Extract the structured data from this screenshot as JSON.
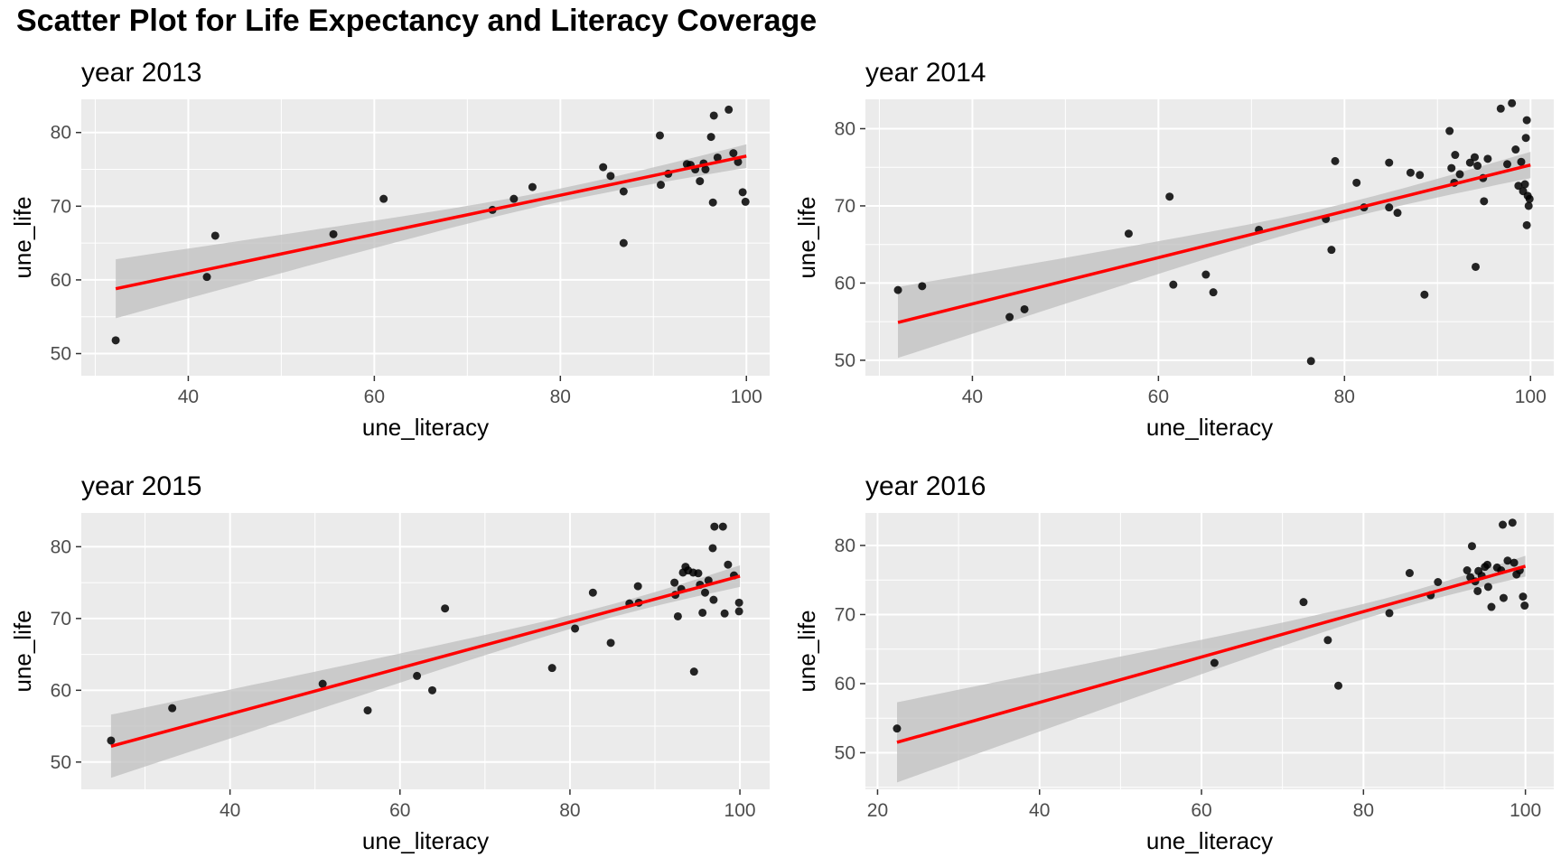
{
  "figure": {
    "title": "Scatter Plot for Life Expectancy and Literacy Coverage"
  },
  "colors": {
    "panel_background": "#ebebeb",
    "grid": "#ffffff",
    "points": "#000000",
    "fit_line": "#ff0000",
    "confidence_band": "#bfbfbf",
    "axis_text": "#4d4d4d",
    "text": "#000000"
  },
  "chart_data": [
    {
      "type": "scatter",
      "title": "year 2013",
      "xlabel": "une_literacy",
      "ylabel": "une_life",
      "xlim": [
        28.5,
        102.5
      ],
      "ylim": [
        47,
        84.5
      ],
      "xticks": [
        40,
        60,
        80,
        100
      ],
      "yticks": [
        50,
        60,
        70,
        80
      ],
      "grid": true,
      "fit": {
        "x": [
          32.2,
          100
        ],
        "y": [
          58.8,
          76.8
        ],
        "band_halfwidth_ends": [
          4.0,
          1.6
        ],
        "band_halfwidth_center": 0.9,
        "band_center_x": 80
      },
      "points": [
        {
          "x": 32.2,
          "y": 51.8
        },
        {
          "x": 42.0,
          "y": 60.4
        },
        {
          "x": 42.9,
          "y": 66.0
        },
        {
          "x": 55.6,
          "y": 66.2
        },
        {
          "x": 61.0,
          "y": 71.0
        },
        {
          "x": 72.7,
          "y": 69.5
        },
        {
          "x": 75.0,
          "y": 71.0
        },
        {
          "x": 77.0,
          "y": 72.6
        },
        {
          "x": 84.6,
          "y": 75.3
        },
        {
          "x": 85.4,
          "y": 74.1
        },
        {
          "x": 86.8,
          "y": 72.0
        },
        {
          "x": 86.8,
          "y": 65.0
        },
        {
          "x": 90.7,
          "y": 79.6
        },
        {
          "x": 90.8,
          "y": 72.9
        },
        {
          "x": 91.6,
          "y": 74.4
        },
        {
          "x": 93.6,
          "y": 75.7
        },
        {
          "x": 94.0,
          "y": 75.6
        },
        {
          "x": 94.5,
          "y": 75.0
        },
        {
          "x": 95.0,
          "y": 73.4
        },
        {
          "x": 95.4,
          "y": 75.8
        },
        {
          "x": 95.6,
          "y": 75.0
        },
        {
          "x": 96.2,
          "y": 79.4
        },
        {
          "x": 96.4,
          "y": 70.5
        },
        {
          "x": 96.5,
          "y": 82.3
        },
        {
          "x": 96.9,
          "y": 76.6
        },
        {
          "x": 98.1,
          "y": 83.1
        },
        {
          "x": 98.6,
          "y": 77.2
        },
        {
          "x": 99.1,
          "y": 76.0
        },
        {
          "x": 99.6,
          "y": 71.9
        },
        {
          "x": 99.9,
          "y": 70.6
        }
      ]
    },
    {
      "type": "scatter",
      "title": "year 2014",
      "xlabel": "une_literacy",
      "ylabel": "une_life",
      "xlim": [
        28.5,
        102.5
      ],
      "ylim": [
        48,
        83.8
      ],
      "xticks": [
        40,
        60,
        80,
        100
      ],
      "yticks": [
        50,
        60,
        70,
        80
      ],
      "grid": true,
      "fit": {
        "x": [
          32,
          100
        ],
        "y": [
          54.9,
          75.3
        ],
        "band_halfwidth_ends": [
          4.6,
          1.7
        ],
        "band_halfwidth_center": 1.0,
        "band_center_x": 80
      },
      "points": [
        {
          "x": 32.0,
          "y": 59.1
        },
        {
          "x": 34.6,
          "y": 59.6
        },
        {
          "x": 44.0,
          "y": 55.6
        },
        {
          "x": 45.6,
          "y": 56.6
        },
        {
          "x": 56.8,
          "y": 66.4
        },
        {
          "x": 61.2,
          "y": 71.2
        },
        {
          "x": 61.6,
          "y": 59.8
        },
        {
          "x": 65.1,
          "y": 61.1
        },
        {
          "x": 65.9,
          "y": 58.8
        },
        {
          "x": 70.8,
          "y": 66.9
        },
        {
          "x": 76.4,
          "y": 49.9
        },
        {
          "x": 78.0,
          "y": 68.3
        },
        {
          "x": 78.6,
          "y": 64.3
        },
        {
          "x": 79.0,
          "y": 75.8
        },
        {
          "x": 81.3,
          "y": 73.0
        },
        {
          "x": 82.1,
          "y": 69.8
        },
        {
          "x": 84.8,
          "y": 75.6
        },
        {
          "x": 84.8,
          "y": 69.8
        },
        {
          "x": 85.7,
          "y": 69.1
        },
        {
          "x": 87.1,
          "y": 74.3
        },
        {
          "x": 88.1,
          "y": 74.0
        },
        {
          "x": 88.6,
          "y": 58.5
        },
        {
          "x": 91.3,
          "y": 79.7
        },
        {
          "x": 91.5,
          "y": 74.9
        },
        {
          "x": 91.8,
          "y": 73.0
        },
        {
          "x": 91.9,
          "y": 76.6
        },
        {
          "x": 92.4,
          "y": 74.1
        },
        {
          "x": 93.5,
          "y": 75.6
        },
        {
          "x": 94.0,
          "y": 76.3
        },
        {
          "x": 94.1,
          "y": 62.1
        },
        {
          "x": 94.3,
          "y": 75.2
        },
        {
          "x": 94.9,
          "y": 73.6
        },
        {
          "x": 95.0,
          "y": 70.6
        },
        {
          "x": 95.4,
          "y": 76.1
        },
        {
          "x": 96.8,
          "y": 82.6
        },
        {
          "x": 97.5,
          "y": 75.4
        },
        {
          "x": 98.0,
          "y": 83.3
        },
        {
          "x": 98.4,
          "y": 77.3
        },
        {
          "x": 98.7,
          "y": 72.6
        },
        {
          "x": 99.0,
          "y": 75.7
        },
        {
          "x": 99.2,
          "y": 71.9
        },
        {
          "x": 99.4,
          "y": 72.8
        },
        {
          "x": 99.5,
          "y": 78.8
        },
        {
          "x": 99.6,
          "y": 81.1
        },
        {
          "x": 99.6,
          "y": 67.5
        },
        {
          "x": 99.7,
          "y": 71.3
        },
        {
          "x": 99.8,
          "y": 70.0
        },
        {
          "x": 99.9,
          "y": 70.9
        }
      ]
    },
    {
      "type": "scatter",
      "title": "year 2015",
      "xlabel": "une_literacy",
      "ylabel": "une_life",
      "xlim": [
        22.5,
        103.5
      ],
      "ylim": [
        46.2,
        84.7
      ],
      "xticks": [
        40,
        60,
        80,
        100
      ],
      "yticks": [
        50,
        60,
        70,
        80
      ],
      "grid": true,
      "fit": {
        "x": [
          26,
          100
        ],
        "y": [
          52.2,
          75.9
        ],
        "band_halfwidth_ends": [
          4.4,
          1.5
        ],
        "band_halfwidth_center": 0.9,
        "band_center_x": 85
      },
      "points": [
        {
          "x": 26.0,
          "y": 53.0
        },
        {
          "x": 33.2,
          "y": 57.5
        },
        {
          "x": 50.9,
          "y": 60.9
        },
        {
          "x": 56.2,
          "y": 57.2
        },
        {
          "x": 62.0,
          "y": 62.0
        },
        {
          "x": 63.8,
          "y": 60.0
        },
        {
          "x": 65.3,
          "y": 71.4
        },
        {
          "x": 77.9,
          "y": 63.1
        },
        {
          "x": 80.6,
          "y": 68.6
        },
        {
          "x": 82.7,
          "y": 73.6
        },
        {
          "x": 84.8,
          "y": 66.6
        },
        {
          "x": 87.0,
          "y": 72.1
        },
        {
          "x": 88.0,
          "y": 74.5
        },
        {
          "x": 88.1,
          "y": 72.2
        },
        {
          "x": 92.3,
          "y": 75.0
        },
        {
          "x": 92.4,
          "y": 73.3
        },
        {
          "x": 92.7,
          "y": 70.3
        },
        {
          "x": 93.1,
          "y": 74.1
        },
        {
          "x": 93.3,
          "y": 76.4
        },
        {
          "x": 93.6,
          "y": 77.2
        },
        {
          "x": 93.9,
          "y": 76.7
        },
        {
          "x": 94.5,
          "y": 76.4
        },
        {
          "x": 94.6,
          "y": 62.6
        },
        {
          "x": 95.1,
          "y": 76.3
        },
        {
          "x": 95.3,
          "y": 74.7
        },
        {
          "x": 95.6,
          "y": 70.8
        },
        {
          "x": 95.9,
          "y": 73.6
        },
        {
          "x": 96.3,
          "y": 75.3
        },
        {
          "x": 96.8,
          "y": 79.8
        },
        {
          "x": 96.9,
          "y": 72.6
        },
        {
          "x": 97.0,
          "y": 82.8
        },
        {
          "x": 98.0,
          "y": 82.8
        },
        {
          "x": 98.2,
          "y": 70.7
        },
        {
          "x": 98.6,
          "y": 77.5
        },
        {
          "x": 99.3,
          "y": 76.0
        },
        {
          "x": 99.9,
          "y": 72.2
        },
        {
          "x": 99.9,
          "y": 71.0
        }
      ]
    },
    {
      "type": "scatter",
      "title": "year 2016",
      "xlabel": "une_literacy",
      "ylabel": "une_life",
      "xlim": [
        18.5,
        103.5
      ],
      "ylim": [
        44.7,
        84.7
      ],
      "xticks": [
        20,
        40,
        60,
        80,
        100
      ],
      "yticks": [
        50,
        60,
        70,
        80
      ],
      "grid": true,
      "fit": {
        "x": [
          22.4,
          100
        ],
        "y": [
          51.5,
          77.0
        ],
        "band_halfwidth_ends": [
          5.8,
          1.5
        ],
        "band_halfwidth_center": 1.0,
        "band_center_x": 85
      },
      "points": [
        {
          "x": 22.4,
          "y": 53.5
        },
        {
          "x": 61.6,
          "y": 63.0
        },
        {
          "x": 72.6,
          "y": 71.8
        },
        {
          "x": 75.6,
          "y": 66.3
        },
        {
          "x": 76.9,
          "y": 59.7
        },
        {
          "x": 83.2,
          "y": 70.2
        },
        {
          "x": 85.7,
          "y": 76.0
        },
        {
          "x": 88.3,
          "y": 72.8
        },
        {
          "x": 89.2,
          "y": 74.7
        },
        {
          "x": 92.8,
          "y": 76.4
        },
        {
          "x": 93.2,
          "y": 75.4
        },
        {
          "x": 93.4,
          "y": 79.9
        },
        {
          "x": 93.8,
          "y": 74.8
        },
        {
          "x": 94.1,
          "y": 73.4
        },
        {
          "x": 94.2,
          "y": 76.3
        },
        {
          "x": 94.6,
          "y": 75.6
        },
        {
          "x": 95.0,
          "y": 76.9
        },
        {
          "x": 95.3,
          "y": 77.2
        },
        {
          "x": 95.4,
          "y": 74.0
        },
        {
          "x": 95.8,
          "y": 71.1
        },
        {
          "x": 96.5,
          "y": 76.8
        },
        {
          "x": 97.0,
          "y": 76.4
        },
        {
          "x": 97.2,
          "y": 83.0
        },
        {
          "x": 97.3,
          "y": 72.4
        },
        {
          "x": 97.8,
          "y": 77.8
        },
        {
          "x": 98.4,
          "y": 83.3
        },
        {
          "x": 98.6,
          "y": 77.5
        },
        {
          "x": 98.9,
          "y": 75.8
        },
        {
          "x": 99.3,
          "y": 76.4
        },
        {
          "x": 99.7,
          "y": 72.6
        },
        {
          "x": 99.9,
          "y": 71.3
        }
      ]
    }
  ]
}
